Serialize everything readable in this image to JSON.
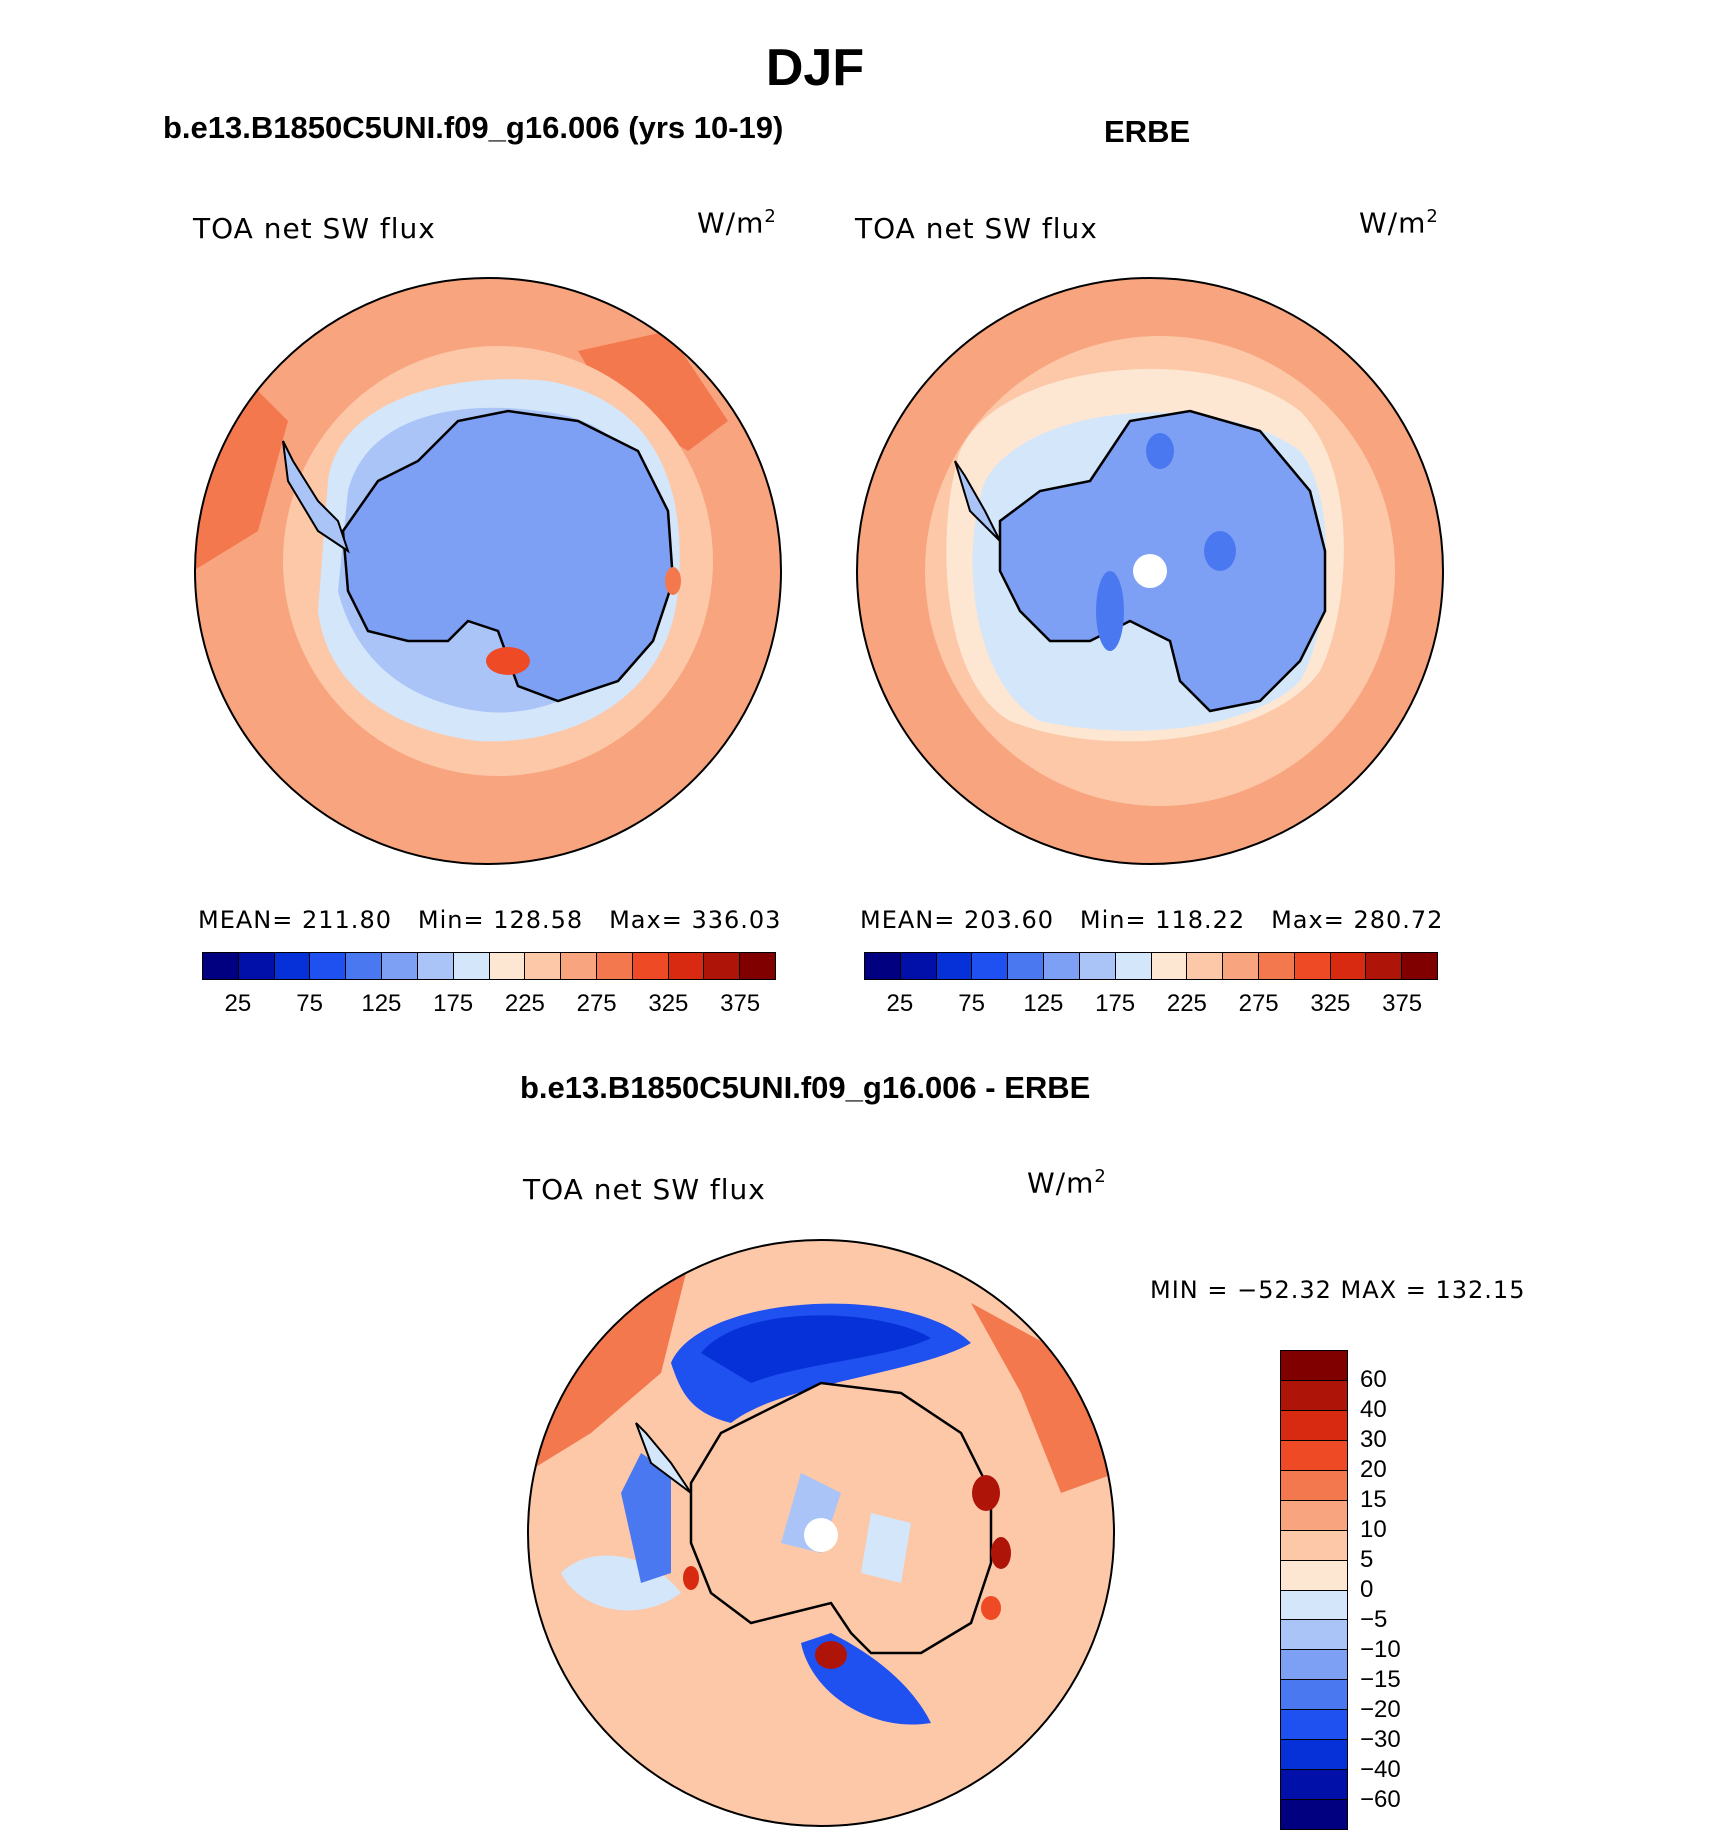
{
  "title": "DJF",
  "variable": "TOA net SW flux",
  "units": "W/m",
  "units_exp": "2",
  "panel_left": {
    "title": "b.e13.B1850C5UNI.f09_g16.006 (yrs 10-19)",
    "mean_label": "MEAN=",
    "mean": "211.80",
    "min_label": "Min=",
    "min": "128.58",
    "max_label": "Max=",
    "max": "336.03"
  },
  "panel_right": {
    "title": "ERBE",
    "mean_label": "MEAN=",
    "mean": "203.60",
    "min_label": "Min=",
    "min": "118.22",
    "max_label": "Max=",
    "max": "280.72"
  },
  "panel_diff": {
    "title": "b.e13.B1850C5UNI.f09_g16.006 - ERBE",
    "minmax": "MIN = −52.32 MAX = 132.15"
  },
  "colorbar_abs": {
    "ticks": [
      "25",
      "75",
      "125",
      "175",
      "225",
      "275",
      "325",
      "375"
    ],
    "colors": [
      "#000080",
      "#0010a8",
      "#0630d8",
      "#1f50f0",
      "#4a78f0",
      "#7da0f5",
      "#aac4f8",
      "#d4e6fa",
      "#fde6d2",
      "#fcc8a8",
      "#f8a47e",
      "#f4784e",
      "#ef4a26",
      "#d82a10",
      "#ae1408",
      "#800000"
    ]
  },
  "colorbar_diff": {
    "ticks": [
      "60",
      "40",
      "30",
      "20",
      "15",
      "10",
      "5",
      "0",
      "−5",
      "−10",
      "−15",
      "−20",
      "−30",
      "−40",
      "−60"
    ],
    "colors": [
      "#800000",
      "#ae1408",
      "#d82a10",
      "#ef4a26",
      "#f4784e",
      "#f8a47e",
      "#fcc8a8",
      "#fde6d2",
      "#d4e6fa",
      "#aac4f8",
      "#7da0f5",
      "#4a78f0",
      "#1f50f0",
      "#0630d8",
      "#0010a8",
      "#000080"
    ]
  }
}
